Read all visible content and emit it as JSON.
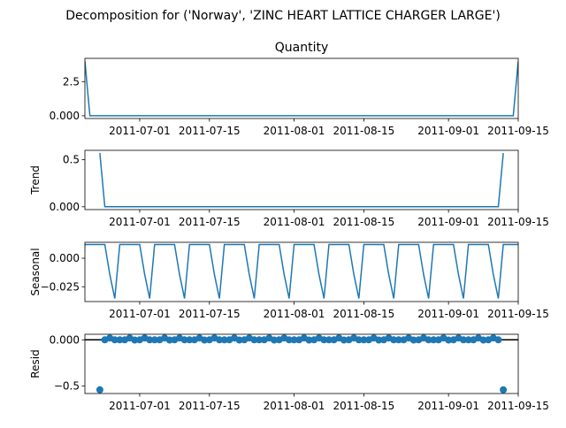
{
  "chart_data": {
    "type": "line",
    "suptitle": "Decomposition for ('Norway', 'ZINC HEART LATTICE CHARGER LARGE')",
    "x_start": "2011-06-20",
    "x_end": "2011-09-15",
    "x_ticks": [
      "2011-07-01",
      "2011-07-15",
      "2011-08-01",
      "2011-08-15",
      "2011-09-01",
      "2011-09-15"
    ],
    "panels": [
      {
        "key": "observed",
        "title": "Quantity",
        "ylabel": "",
        "kind": "line",
        "ylim": [
          -0.2,
          4.2
        ],
        "yticks": [
          0.0,
          2.5
        ],
        "x": [
          "2011-06-20",
          "2011-06-21",
          "2011-09-14",
          "2011-09-15"
        ],
        "y": [
          4,
          0,
          0,
          4
        ]
      },
      {
        "key": "trend",
        "title": "",
        "ylabel": "Trend",
        "kind": "line",
        "ylim": [
          -0.03,
          0.6
        ],
        "yticks": [
          0.0,
          0.5
        ],
        "x": [
          "2011-06-23",
          "2011-06-24",
          "2011-09-11",
          "2011-09-12"
        ],
        "y": [
          0.571,
          0,
          0,
          0.571
        ]
      },
      {
        "key": "seasonal",
        "title": "",
        "ylabel": "Seasonal",
        "kind": "line",
        "ylim": [
          -0.038,
          0.014
        ],
        "yticks": [
          0.0,
          -0.025
        ],
        "pattern_start": "2011-06-20",
        "pattern": [
          0.0121,
          0.0121,
          0.0121,
          0.0121,
          0.0121,
          -0.0143,
          -0.0353
        ]
      },
      {
        "key": "resid",
        "title": "",
        "ylabel": "Resid",
        "kind": "scatter",
        "ylim": [
          -0.58,
          0.06
        ],
        "yticks": [
          0.0,
          -0.5
        ],
        "baseline": 0,
        "points": [
          {
            "x": "2011-06-23",
            "y": -0.54
          },
          {
            "x": "2011-09-12",
            "y": -0.54
          }
        ],
        "pattern_start": "2011-06-24",
        "pattern_end": "2011-09-11",
        "pattern": [
          0.0,
          0.02,
          0.0,
          0.0,
          0.0,
          0.02,
          -0.002
        ]
      }
    ]
  }
}
